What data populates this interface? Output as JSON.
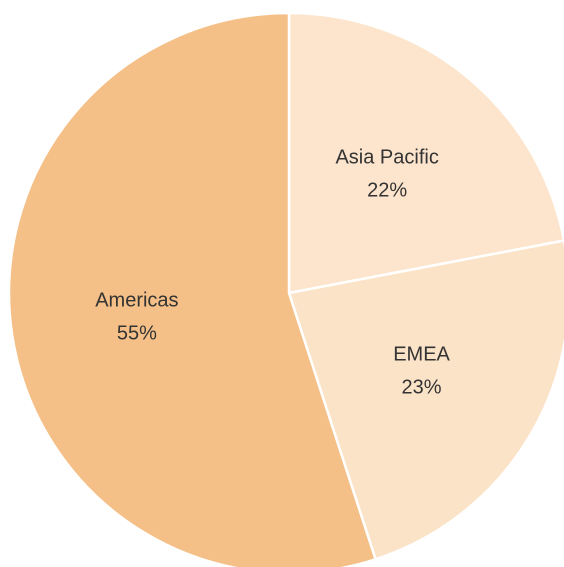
{
  "chart_data": {
    "type": "pie",
    "categories": [
      "Asia Pacific",
      "EMEA",
      "Americas"
    ],
    "values": [
      22,
      23,
      55
    ],
    "value_labels": [
      "22%",
      "23%",
      "55%"
    ],
    "colors": [
      "#fce5cc",
      "#fbe3c8",
      "#f4c088"
    ]
  }
}
